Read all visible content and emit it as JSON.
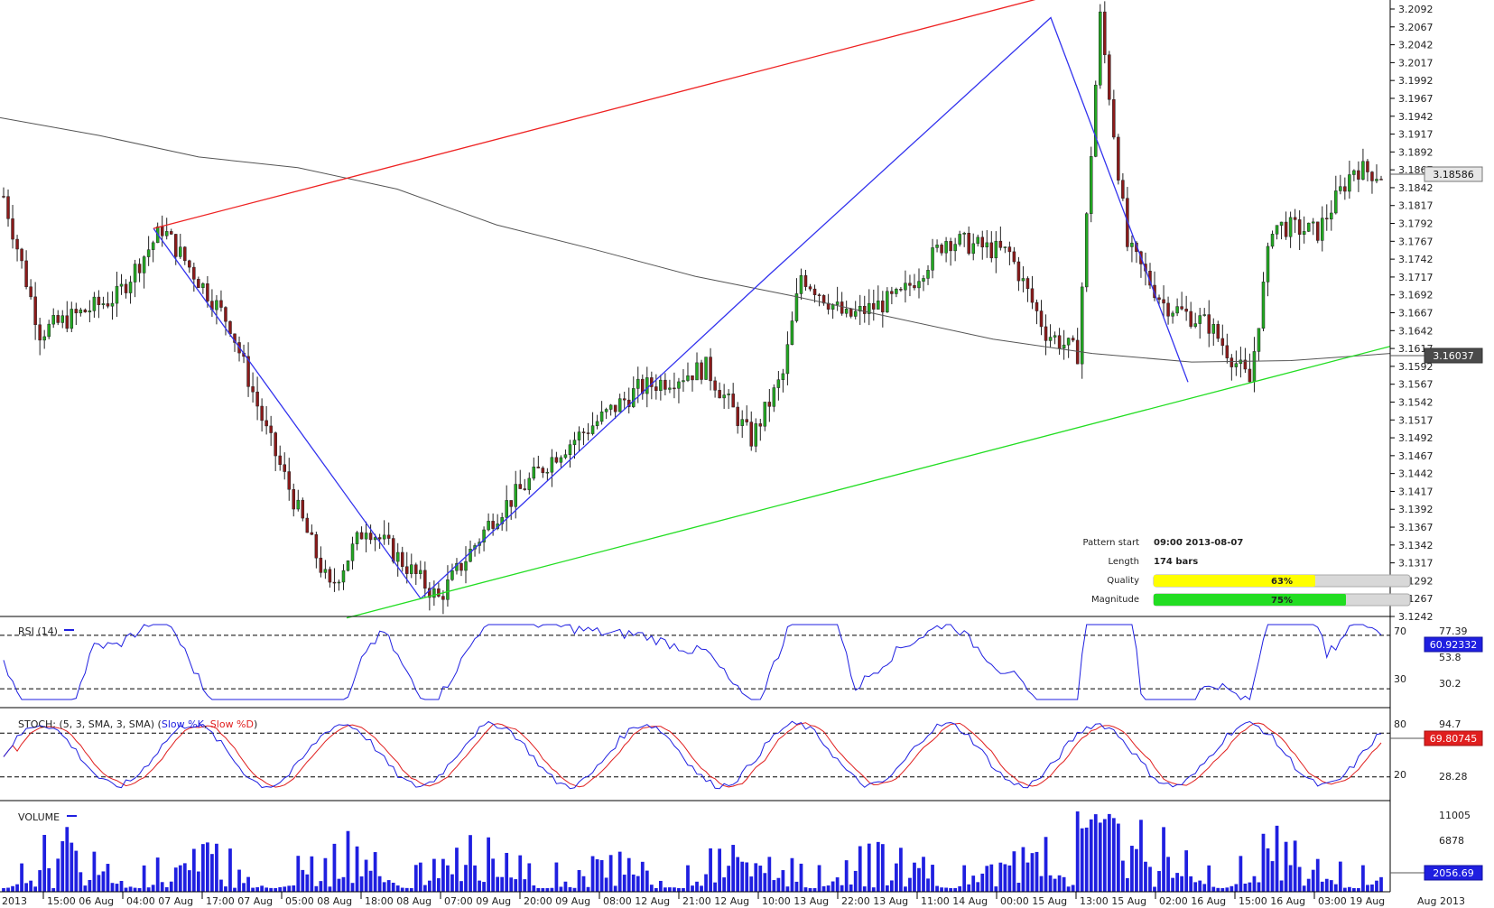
{
  "chart_data": [
    {
      "type": "candlestick",
      "panel": "price",
      "ylim": [
        3.1242,
        3.2092
      ],
      "y_ticks": [
        "3.2092",
        "3.2067",
        "3.2042",
        "3.2017",
        "3.1992",
        "3.1967",
        "3.1942",
        "3.1917",
        "3.1892",
        "3.1867",
        "3.1842",
        "3.1817",
        "3.1792",
        "3.1767",
        "3.1742",
        "3.1717",
        "3.1692",
        "3.1667",
        "3.1642",
        "3.1617",
        "3.1592",
        "3.1567",
        "3.1542",
        "3.1517",
        "3.1492",
        "3.1467",
        "3.1442",
        "3.1417",
        "3.1392",
        "3.1367",
        "3.1342",
        "3.1317",
        "3.1292",
        "3.1267",
        "3.1242"
      ],
      "current_price": "3.18586",
      "ma_value": "3.16037",
      "x_ticks": [
        "2013",
        "15:00 06 Aug",
        "04:00 07 Aug",
        "17:00 07 Aug",
        "05:00 08 Aug",
        "18:00 08 Aug",
        "07:00 09 Aug",
        "20:00 09 Aug",
        "08:00 12 Aug",
        "21:00 12 Aug",
        "10:00 13 Aug",
        "22:00 13 Aug",
        "11:00 14 Aug",
        "00:00 15 Aug",
        "13:00 15 Aug",
        "02:00 16 Aug",
        "15:00 16 Aug",
        "03:00 19 Aug",
        "Aug 2013"
      ],
      "pattern_zigzag_prices": [
        3.1785,
        3.1267,
        3.172,
        3.208,
        3.157
      ],
      "resistance_line": {
        "from": 3.1785,
        "to": 3.213
      },
      "support_line": {
        "from": 3.124,
        "to": 3.162
      },
      "moving_average": [
        3.194,
        3.1915,
        3.1885,
        3.187,
        3.184,
        3.179,
        3.1755,
        3.1718,
        3.169,
        3.166,
        3.163,
        3.161,
        3.1598,
        3.16,
        3.161
      ]
    },
    {
      "type": "line",
      "panel": "rsi",
      "title": "RSI (14)",
      "ylim": [
        20,
        80
      ],
      "levels": [
        70,
        30
      ],
      "y_ticks": [
        "77.39",
        "53.8",
        "30.2"
      ],
      "current_value": "60.92332"
    },
    {
      "type": "line",
      "panel": "stochastic",
      "title": "STOCH: (5, 3, SMA, 3, SMA)",
      "series": [
        {
          "name": "Slow %K",
          "color": "#1f1fe0"
        },
        {
          "name": "Slow %D",
          "color": "#e01f1f"
        }
      ],
      "levels": [
        80,
        20
      ],
      "y_ticks": [
        "94.7",
        "28.28"
      ],
      "current_value": "69.80745"
    },
    {
      "type": "bar",
      "panel": "volume",
      "title": "VOLUME",
      "y_ticks": [
        "11005",
        "6878"
      ],
      "current_value": "2056.69"
    }
  ],
  "pattern_info": {
    "start_label": "Pattern start",
    "start_value": "09:00 2013-08-07",
    "length_label": "Length",
    "length_value": "174 bars",
    "quality_label": "Quality",
    "quality_value": "63%",
    "quality_fraction": 0.63,
    "magnitude_label": "Magnitude",
    "magnitude_value": "75%",
    "magnitude_fraction": 0.75
  },
  "levels_labels": {
    "rsi_70": "70",
    "rsi_30": "30",
    "stoch_80": "80",
    "stoch_20": "20"
  },
  "colors": {
    "bull": "#22a822",
    "bear": "#8b1a1a",
    "zigzag": "#3333ee",
    "resistance": "#ee2222",
    "support": "#22dd22",
    "ma": "#555555",
    "volume": "#1f1fe0",
    "quality": "#ffff00",
    "magnitude": "#22dd22"
  }
}
